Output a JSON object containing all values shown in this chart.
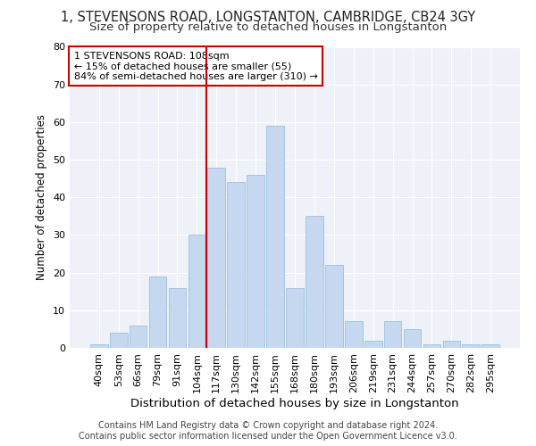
{
  "title": "1, STEVENSONS ROAD, LONGSTANTON, CAMBRIDGE, CB24 3GY",
  "subtitle": "Size of property relative to detached houses in Longstanton",
  "xlabel": "Distribution of detached houses by size in Longstanton",
  "ylabel": "Number of detached properties",
  "bar_color": "#c5d8f0",
  "bar_edge_color": "#8fb8dc",
  "categories": [
    "40sqm",
    "53sqm",
    "66sqm",
    "79sqm",
    "91sqm",
    "104sqm",
    "117sqm",
    "130sqm",
    "142sqm",
    "155sqm",
    "168sqm",
    "180sqm",
    "193sqm",
    "206sqm",
    "219sqm",
    "231sqm",
    "244sqm",
    "257sqm",
    "270sqm",
    "282sqm",
    "295sqm"
  ],
  "values": [
    1,
    4,
    6,
    19,
    16,
    30,
    48,
    44,
    46,
    59,
    16,
    35,
    22,
    7,
    2,
    7,
    5,
    1,
    2,
    1,
    1
  ],
  "ylim": [
    0,
    80
  ],
  "yticks": [
    0,
    10,
    20,
    30,
    40,
    50,
    60,
    70,
    80
  ],
  "vline_x": 5.5,
  "vline_color": "#cc0000",
  "annotation_line1": "1 STEVENSONS ROAD: 108sqm",
  "annotation_line2": "← 15% of detached houses are smaller (55)",
  "annotation_line3": "84% of semi-detached houses are larger (310) →",
  "annotation_box_color": "#cc0000",
  "background_color": "#eef2f8",
  "footer": "Contains HM Land Registry data © Crown copyright and database right 2024.\nContains public sector information licensed under the Open Government Licence v3.0.",
  "title_fontsize": 10.5,
  "subtitle_fontsize": 9.5,
  "xlabel_fontsize": 9.5,
  "ylabel_fontsize": 8.5,
  "tick_fontsize": 8,
  "annotation_fontsize": 8,
  "footer_fontsize": 7
}
